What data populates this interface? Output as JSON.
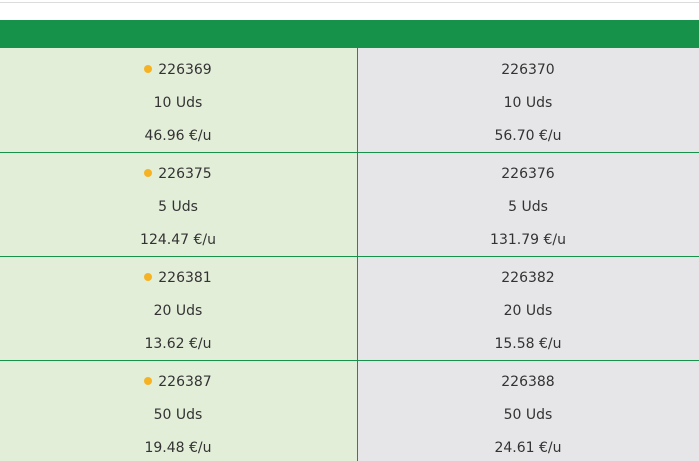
{
  "table": {
    "rows": [
      [
        {
          "code": "226369",
          "qty": "10 Uds",
          "price": "46.96 €/u"
        },
        {
          "code": "226370",
          "qty": "10 Uds",
          "price": "56.70 €/u"
        }
      ],
      [
        {
          "code": "226375",
          "qty": "5 Uds",
          "price": "124.47 €/u"
        },
        {
          "code": "226376",
          "qty": "5 Uds",
          "price": "131.79 €/u"
        }
      ],
      [
        {
          "code": "226381",
          "qty": "20 Uds",
          "price": "13.62 €/u"
        },
        {
          "code": "226382",
          "qty": "20 Uds",
          "price": "15.58 €/u"
        }
      ],
      [
        {
          "code": "226387",
          "qty": "50 Uds",
          "price": "19.48 €/u"
        },
        {
          "code": "226388",
          "qty": "50 Uds",
          "price": "24.61 €/u"
        }
      ]
    ]
  }
}
